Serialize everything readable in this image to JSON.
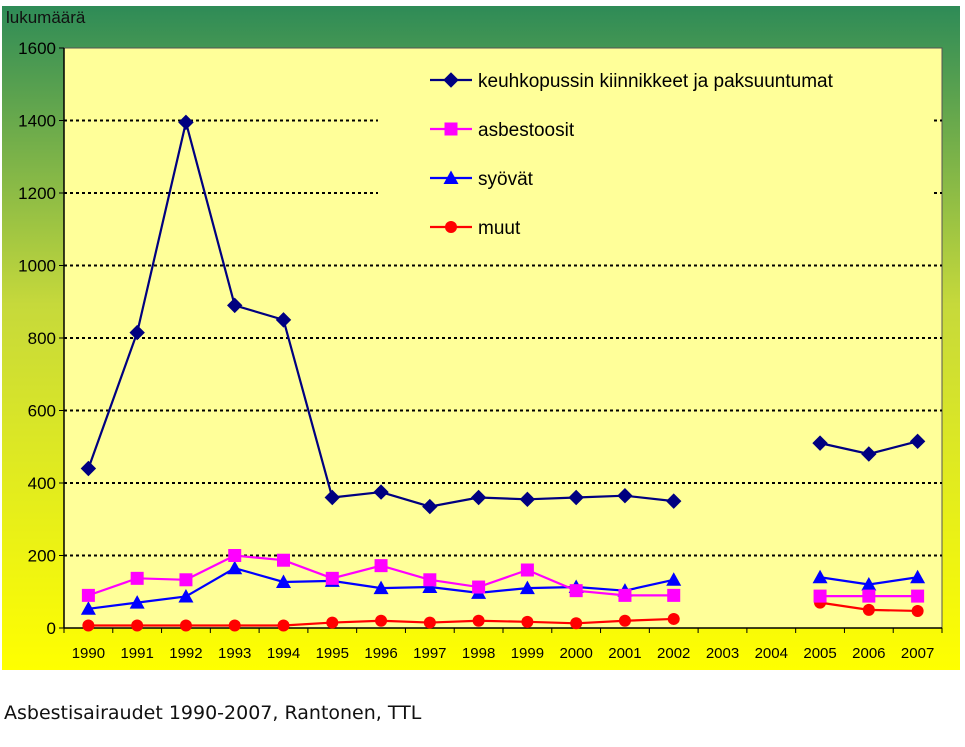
{
  "caption": "Asbestisairaudet 1990-2007, Rantonen, TTL",
  "colors": {
    "background_top": "#2e8b57",
    "background_bottom": "#ffff00",
    "plot_area": "#ffff99",
    "grid": "#000000"
  },
  "chart_data": {
    "type": "line",
    "title": "",
    "xlabel": "",
    "ylabel": "lukumäärä",
    "ylim": [
      0,
      1600
    ],
    "yticks": [
      "0",
      "200",
      "400",
      "600",
      "800",
      "1000",
      "1200",
      "1400",
      "1600"
    ],
    "grid": true,
    "legend_position": "top-right",
    "categories": [
      "1990",
      "1991",
      "1992",
      "1993",
      "1994",
      "1995",
      "1996",
      "1997",
      "1998",
      "1999",
      "2000",
      "2001",
      "2002",
      "2003",
      "2004",
      "2005",
      "2006",
      "2007"
    ],
    "series": [
      {
        "name": "keuhkopussin kiinnikkeet ja paksuuntumat",
        "color": "#000080",
        "marker": "diamond",
        "values": [
          440,
          815,
          1395,
          890,
          850,
          360,
          375,
          335,
          360,
          355,
          360,
          365,
          350,
          null,
          null,
          510,
          480,
          515
        ]
      },
      {
        "name": "asbestoosit",
        "color": "#ff00ff",
        "marker": "square",
        "values": [
          90,
          137,
          133,
          200,
          187,
          137,
          172,
          133,
          113,
          160,
          103,
          90,
          90,
          null,
          null,
          88,
          88,
          88
        ]
      },
      {
        "name": "syövät",
        "color": "#0000ff",
        "marker": "triangle",
        "values": [
          53,
          70,
          87,
          165,
          127,
          130,
          110,
          113,
          97,
          110,
          113,
          103,
          133,
          null,
          null,
          140,
          120,
          140
        ]
      },
      {
        "name": "muut",
        "color": "#ff0000",
        "marker": "circle",
        "values": [
          7,
          7,
          7,
          7,
          7,
          15,
          20,
          15,
          20,
          17,
          13,
          20,
          25,
          null,
          null,
          70,
          50,
          47
        ]
      }
    ]
  }
}
